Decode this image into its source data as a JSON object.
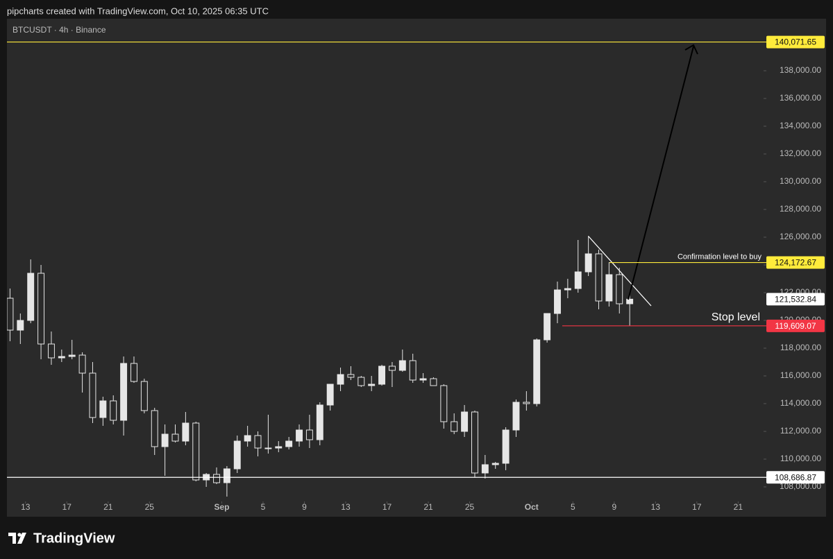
{
  "header": {
    "credit": "pipcharts created with TradingView.com, Oct 10, 2025 06:35 UTC",
    "symbol": "BTCUSDT · 4h · Binance"
  },
  "footer": {
    "brand": "TradingView"
  },
  "chart_data": {
    "type": "candlestick",
    "color": "#e6e6e6",
    "grid": false,
    "x": [
      "2025-08-11",
      "2025-08-12",
      "2025-08-13",
      "2025-08-14",
      "2025-08-15",
      "2025-08-16",
      "2025-08-17",
      "2025-08-18",
      "2025-08-19",
      "2025-08-20",
      "2025-08-21",
      "2025-08-22",
      "2025-08-23",
      "2025-08-24",
      "2025-08-25",
      "2025-08-26",
      "2025-08-27",
      "2025-08-28",
      "2025-08-29",
      "2025-08-30",
      "2025-08-31",
      "2025-09-01",
      "2025-09-02",
      "2025-09-03",
      "2025-09-04",
      "2025-09-05",
      "2025-09-06",
      "2025-09-07",
      "2025-09-08",
      "2025-09-09",
      "2025-09-10",
      "2025-09-11",
      "2025-09-12",
      "2025-09-13",
      "2025-09-14",
      "2025-09-15",
      "2025-09-16",
      "2025-09-17",
      "2025-09-18",
      "2025-09-19",
      "2025-09-20",
      "2025-09-21",
      "2025-09-22",
      "2025-09-23",
      "2025-09-24",
      "2025-09-25",
      "2025-09-26",
      "2025-09-27",
      "2025-09-28",
      "2025-09-29",
      "2025-09-30",
      "2025-10-01",
      "2025-10-02",
      "2025-10-03",
      "2025-10-04",
      "2025-10-05",
      "2025-10-06",
      "2025-10-07",
      "2025-10-08",
      "2025-10-09",
      "2025-10-10"
    ],
    "open": [
      121600,
      119300,
      120000,
      123400,
      118300,
      117300,
      117400,
      117500,
      116200,
      113000,
      114200,
      112800,
      116900,
      115600,
      113500,
      110900,
      111800,
      111300,
      112600,
      108500,
      108900,
      108300,
      109300,
      111300,
      111700,
      110800,
      110800,
      110900,
      111300,
      112100,
      111400,
      113900,
      115400,
      116100,
      115900,
      115300,
      115400,
      116700,
      116400,
      117100,
      115700,
      115800,
      115300,
      112700,
      112000,
      113400,
      109000,
      109600,
      109700,
      112100,
      114100,
      114000,
      118600,
      120500,
      122200,
      122300,
      123500,
      124800,
      121400,
      123300,
      121200
    ],
    "high": [
      122300,
      120500,
      124400,
      124000,
      119200,
      117900,
      118600,
      117700,
      117000,
      114500,
      114600,
      117400,
      117400,
      115800,
      113700,
      112500,
      112500,
      113400,
      112700,
      109000,
      109400,
      109500,
      111700,
      112400,
      112000,
      113200,
      111300,
      111600,
      112500,
      113200,
      114100,
      115400,
      116600,
      116700,
      116000,
      116000,
      116800,
      117000,
      117900,
      117600,
      116200,
      115900,
      115400,
      113300,
      113900,
      113500,
      110300,
      109800,
      112300,
      114300,
      114900,
      118700,
      120500,
      122800,
      123000,
      125800,
      126100,
      125100,
      124200,
      123800,
      122000
    ],
    "low": [
      118500,
      118300,
      119800,
      117200,
      116800,
      117000,
      117200,
      114800,
      112600,
      112400,
      112500,
      111700,
      115500,
      113300,
      110300,
      108800,
      111200,
      111000,
      108400,
      108000,
      108200,
      107300,
      109000,
      110900,
      110200,
      110400,
      110500,
      110700,
      110900,
      110800,
      111000,
      113500,
      114900,
      115700,
      115200,
      114900,
      115300,
      115200,
      116300,
      115500,
      115500,
      115300,
      112200,
      111800,
      111600,
      108700,
      108600,
      109300,
      109200,
      111600,
      113500,
      113800,
      118400,
      119800,
      121600,
      122000,
      123200,
      120800,
      121000,
      120500,
      119600
    ],
    "close": [
      119300,
      120000,
      123400,
      118300,
      117300,
      117400,
      117500,
      116200,
      113000,
      114200,
      112800,
      116900,
      115600,
      113500,
      110900,
      111800,
      111300,
      112600,
      108500,
      108900,
      108300,
      109300,
      111300,
      111700,
      110800,
      110800,
      110900,
      111300,
      112100,
      111400,
      113900,
      115400,
      116100,
      115900,
      115300,
      115400,
      116700,
      116400,
      117100,
      115700,
      115800,
      115300,
      112700,
      112000,
      113400,
      109000,
      109600,
      109700,
      112100,
      114100,
      114000,
      118600,
      120500,
      122200,
      122300,
      123500,
      124800,
      121400,
      123300,
      121200,
      121532.84
    ],
    "xlim": [
      "2025-08-11",
      "2025-10-24"
    ],
    "xticks": [
      {
        "value": "2025-08-13",
        "label": "13"
      },
      {
        "value": "2025-08-17",
        "label": "17"
      },
      {
        "value": "2025-08-21",
        "label": "21"
      },
      {
        "value": "2025-08-25",
        "label": "25"
      },
      {
        "value": "2025-09-01",
        "label": "Sep"
      },
      {
        "value": "2025-09-05",
        "label": "5"
      },
      {
        "value": "2025-09-09",
        "label": "9"
      },
      {
        "value": "2025-09-13",
        "label": "13"
      },
      {
        "value": "2025-09-17",
        "label": "17"
      },
      {
        "value": "2025-09-21",
        "label": "21"
      },
      {
        "value": "2025-09-25",
        "label": "25"
      },
      {
        "value": "2025-10-01",
        "label": "Oct"
      },
      {
        "value": "2025-10-05",
        "label": "5"
      },
      {
        "value": "2025-10-09",
        "label": "9"
      },
      {
        "value": "2025-10-13",
        "label": "13"
      },
      {
        "value": "2025-10-17",
        "label": "17"
      },
      {
        "value": "2025-10-21",
        "label": "21"
      }
    ],
    "ylim": [
      105850,
      141750
    ],
    "yticks": [
      {
        "value": 108000,
        "label": "108,000.00"
      },
      {
        "value": 110000,
        "label": "110,000.00"
      },
      {
        "value": 112000,
        "label": "112,000.00"
      },
      {
        "value": 114000,
        "label": "114,000.00"
      },
      {
        "value": 116000,
        "label": "116,000.00"
      },
      {
        "value": 118000,
        "label": "118,000.00"
      },
      {
        "value": 120000,
        "label": "120,000.00"
      },
      {
        "value": 122000,
        "label": "122,000.00"
      },
      {
        "value": 124000,
        "label": "124,000.00"
      },
      {
        "value": 126000,
        "label": "126,000.00"
      },
      {
        "value": 128000,
        "label": "128,000.00"
      },
      {
        "value": 130000,
        "label": "130,000.00"
      },
      {
        "value": 132000,
        "label": "132,000.00"
      },
      {
        "value": 134000,
        "label": "134,000.00"
      },
      {
        "value": 136000,
        "label": "136,000.00"
      },
      {
        "value": 138000,
        "label": "138,000.00"
      }
    ],
    "levels": [
      {
        "value": 140071.65,
        "label": "140,071.65",
        "color": "#ffeb3b"
      },
      {
        "value": 124172.67,
        "label": "124,172.67",
        "color": "#ffeb3b",
        "note": "Confirmation level to buy"
      },
      {
        "value": 121532.84,
        "label": "121,532.84",
        "color": "#ffffff"
      },
      {
        "value": 119609.07,
        "label": "119,609.07",
        "color": "#f23645",
        "note": "Stop level"
      },
      {
        "value": 108686.87,
        "label": "108,686.87",
        "color": "#ffffff"
      }
    ]
  }
}
